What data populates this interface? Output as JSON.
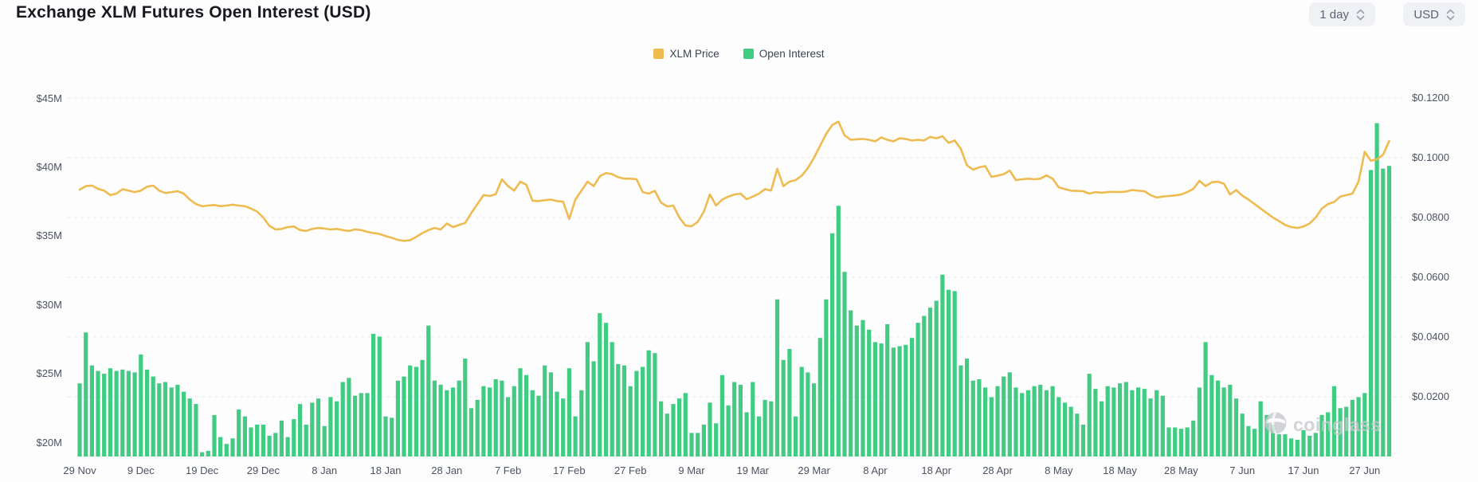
{
  "header": {
    "title": "Exchange XLM Futures Open Interest (USD)",
    "controls": [
      {
        "label": "1 day"
      },
      {
        "label": "USD"
      }
    ]
  },
  "legend": [
    {
      "label": "XLM Price",
      "color": "#EEBB50"
    },
    {
      "label": "Open Interest",
      "color": "#41CB83"
    }
  ],
  "watermark": "coinglass",
  "chart_data": {
    "type": "mixed",
    "title": "Exchange XLM Futures Open Interest (USD)",
    "x_start_label": "29 Nov",
    "x_tick_every": 10,
    "x_tick_labels": [
      "29 Nov",
      "9 Dec",
      "19 Dec",
      "29 Dec",
      "8 Jan",
      "18 Jan",
      "28 Jan",
      "7 Feb",
      "17 Feb",
      "27 Feb",
      "9 Mar",
      "19 Mar",
      "29 Mar",
      "8 Apr",
      "18 Apr",
      "28 Apr",
      "8 May",
      "18 May",
      "28 May",
      "7 Jun",
      "17 Jun",
      "27 Jun"
    ],
    "left_axis": {
      "name": "Open Interest (USD)",
      "tick_labels": [
        "$45M",
        "$40M",
        "$35M",
        "$30M",
        "$25M",
        "$20M"
      ],
      "tick_values": [
        45,
        40,
        35,
        30,
        25,
        20
      ],
      "unit": "million USD"
    },
    "right_axis": {
      "name": "XLM Price (USD)",
      "tick_labels": [
        "$0.1200",
        "$0.1000",
        "$0.0800",
        "$0.0600",
        "$0.0400",
        "$0.0200"
      ],
      "tick_values": [
        0.12,
        0.1,
        0.08,
        0.06,
        0.04,
        0.02
      ],
      "min": 0
    },
    "grid": "dashed horizontal lines at right-axis ticks",
    "legend_position": "top-center",
    "series": [
      {
        "name": "Open Interest",
        "type": "bar",
        "axis": "left",
        "color": "#41CB83",
        "values": [
          24.3,
          28.0,
          25.6,
          25.2,
          25.0,
          25.4,
          25.2,
          25.3,
          25.2,
          25.1,
          26.4,
          25.3,
          24.8,
          24.3,
          24.4,
          24.0,
          24.2,
          23.7,
          23.2,
          22.8,
          19.3,
          19.4,
          22.0,
          20.4,
          19.9,
          20.3,
          22.4,
          21.9,
          21.1,
          21.3,
          21.3,
          20.5,
          20.7,
          21.6,
          20.4,
          21.7,
          22.8,
          21.3,
          22.9,
          23.2,
          21.2,
          23.3,
          23.0,
          24.4,
          24.7,
          23.4,
          23.6,
          23.6,
          27.9,
          27.7,
          21.9,
          21.8,
          24.5,
          24.8,
          25.6,
          25.5,
          26.0,
          28.5,
          24.5,
          24.2,
          23.8,
          24.0,
          24.5,
          26.1,
          22.5,
          23.1,
          24.1,
          24.0,
          24.6,
          24.5,
          23.3,
          24.1,
          25.4,
          24.9,
          23.8,
          23.4,
          25.6,
          25.1,
          23.7,
          23.2,
          25.4,
          21.9,
          23.8,
          27.3,
          25.9,
          29.4,
          28.7,
          27.3,
          25.7,
          25.6,
          24.1,
          25.2,
          25.5,
          26.7,
          26.5,
          23.0,
          22.1,
          22.8,
          23.2,
          23.6,
          20.7,
          20.7,
          21.3,
          22.9,
          21.4,
          24.9,
          22.7,
          24.4,
          24.2,
          22.2,
          24.4,
          21.9,
          23.1,
          23.0,
          30.4,
          26.0,
          26.8,
          21.9,
          25.5,
          25.1,
          24.3,
          27.6,
          30.4,
          35.2,
          37.2,
          32.4,
          29.6,
          28.5,
          28.9,
          28.2,
          27.3,
          27.2,
          28.6,
          26.9,
          27.0,
          27.1,
          27.6,
          28.7,
          29.2,
          29.8,
          30.3,
          32.2,
          31.1,
          31.0,
          25.6,
          26.1,
          24.5,
          24.6,
          24.0,
          23.3,
          24.1,
          24.8,
          25.1,
          24.0,
          23.6,
          23.8,
          24.1,
          24.2,
          23.8,
          24.1,
          23.3,
          22.9,
          22.6,
          22.1,
          21.3,
          25.0,
          23.9,
          23.0,
          24.1,
          24.0,
          24.3,
          24.4,
          23.8,
          24.0,
          23.9,
          23.2,
          23.8,
          23.4,
          21.1,
          21.1,
          21.0,
          21.1,
          21.6,
          24.0,
          27.3,
          24.9,
          24.5,
          24.0,
          24.2,
          23.2,
          22.1,
          21.2,
          21.0,
          23.0,
          22.0,
          21.3,
          20.6,
          20.6,
          20.3,
          20.2,
          20.9,
          20.5,
          20.7,
          22.0,
          22.2,
          24.1,
          22.5,
          22.6,
          23.1,
          23.3,
          23.6,
          39.8,
          43.2,
          39.9,
          40.1
        ]
      },
      {
        "name": "XLM Price",
        "type": "line",
        "axis": "right",
        "color": "#EEBB50",
        "values": [
          0.0893,
          0.0905,
          0.0907,
          0.0896,
          0.089,
          0.0875,
          0.088,
          0.0895,
          0.089,
          0.0885,
          0.089,
          0.0903,
          0.0907,
          0.089,
          0.0882,
          0.0885,
          0.0888,
          0.088,
          0.086,
          0.0845,
          0.0838,
          0.084,
          0.0842,
          0.0838,
          0.084,
          0.0843,
          0.084,
          0.0838,
          0.083,
          0.082,
          0.08,
          0.0772,
          0.076,
          0.0762,
          0.0768,
          0.077,
          0.0758,
          0.0755,
          0.0762,
          0.0765,
          0.0763,
          0.076,
          0.0762,
          0.0758,
          0.0755,
          0.076,
          0.0758,
          0.0752,
          0.0748,
          0.0745,
          0.0738,
          0.0732,
          0.0725,
          0.0722,
          0.0724,
          0.0735,
          0.0748,
          0.0758,
          0.0765,
          0.076,
          0.078,
          0.0768,
          0.0775,
          0.0782,
          0.0815,
          0.0845,
          0.0875,
          0.0872,
          0.0878,
          0.0928,
          0.0905,
          0.089,
          0.092,
          0.091,
          0.0856,
          0.0855,
          0.0858,
          0.086,
          0.0855,
          0.0853,
          0.0795,
          0.086,
          0.089,
          0.092,
          0.0905,
          0.0938,
          0.0949,
          0.0945,
          0.0935,
          0.093,
          0.093,
          0.0928,
          0.0885,
          0.088,
          0.0889,
          0.085,
          0.0837,
          0.084,
          0.08,
          0.0773,
          0.0771,
          0.0785,
          0.082,
          0.0877,
          0.084,
          0.086,
          0.087,
          0.0877,
          0.088,
          0.0861,
          0.087,
          0.088,
          0.0895,
          0.089,
          0.0963,
          0.0905,
          0.092,
          0.0925,
          0.094,
          0.0965,
          0.1,
          0.104,
          0.108,
          0.111,
          0.1121,
          0.1075,
          0.106,
          0.1062,
          0.1063,
          0.106,
          0.1055,
          0.1068,
          0.106,
          0.1055,
          0.1065,
          0.1063,
          0.1058,
          0.106,
          0.1058,
          0.107,
          0.1065,
          0.1072,
          0.105,
          0.1058,
          0.103,
          0.0975,
          0.096,
          0.0968,
          0.0972,
          0.0936,
          0.094,
          0.0945,
          0.0957,
          0.0925,
          0.0928,
          0.093,
          0.0928,
          0.093,
          0.0941,
          0.093,
          0.0901,
          0.0895,
          0.089,
          0.0889,
          0.0888,
          0.088,
          0.0885,
          0.0883,
          0.0885,
          0.0886,
          0.0885,
          0.0887,
          0.0892,
          0.089,
          0.0888,
          0.0875,
          0.0867,
          0.087,
          0.0872,
          0.0874,
          0.0877,
          0.0885,
          0.0896,
          0.0923,
          0.0905,
          0.0918,
          0.092,
          0.0913,
          0.0877,
          0.0892,
          0.0873,
          0.086,
          0.0845,
          0.083,
          0.0815,
          0.08,
          0.0788,
          0.0775,
          0.0768,
          0.0765,
          0.077,
          0.078,
          0.08,
          0.083,
          0.0845,
          0.0852,
          0.087,
          0.0875,
          0.088,
          0.092,
          0.102,
          0.099,
          0.0995,
          0.101,
          0.1056
        ]
      }
    ]
  }
}
